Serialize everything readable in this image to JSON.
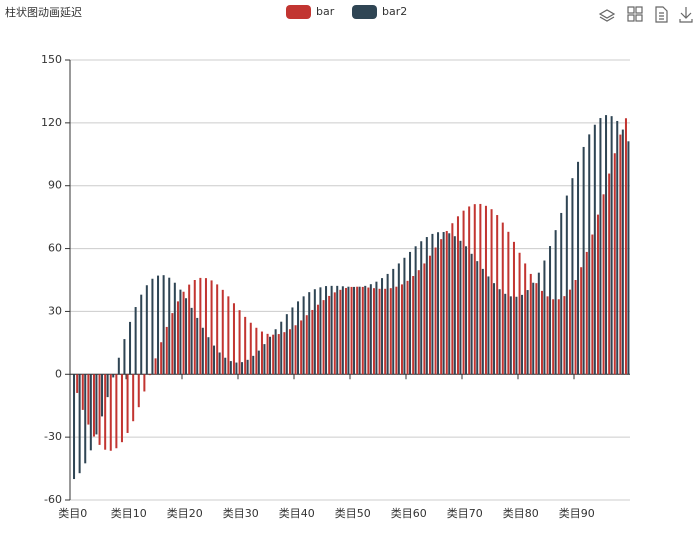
{
  "chart_data": {
    "type": "bar",
    "title": "柱状图动画延迟",
    "categories": [
      "类目0",
      null,
      null,
      null,
      null,
      null,
      null,
      null,
      null,
      null,
      "类目10",
      null,
      null,
      null,
      null,
      null,
      null,
      null,
      null,
      null,
      "类目20",
      null,
      null,
      null,
      null,
      null,
      null,
      null,
      null,
      null,
      "类目30",
      null,
      null,
      null,
      null,
      null,
      null,
      null,
      null,
      null,
      "类目40",
      null,
      null,
      null,
      null,
      null,
      null,
      null,
      null,
      null,
      "类目50",
      null,
      null,
      null,
      null,
      null,
      null,
      null,
      null,
      null,
      "类目60",
      null,
      null,
      null,
      null,
      null,
      null,
      null,
      null,
      null,
      "类目70",
      null,
      null,
      null,
      null,
      null,
      null,
      null,
      null,
      null,
      "类目80",
      null,
      null,
      null,
      null,
      null,
      null,
      null,
      null,
      null,
      "类目90",
      null,
      null,
      null,
      null,
      null,
      null,
      null,
      null,
      null
    ],
    "series": [
      {
        "name": "bar",
        "color": "#c23531",
        "values": [
          0,
          -8.9,
          -17.0,
          -24.0,
          -29.7,
          -33.7,
          -36.0,
          -36.5,
          -35.3,
          -32.4,
          -28.0,
          -22.4,
          -15.7,
          -8.2,
          -0.4,
          7.6,
          15.3,
          22.6,
          29.2,
          34.8,
          39.4,
          42.8,
          45.0,
          46.0,
          45.9,
          44.8,
          42.9,
          40.3,
          37.2,
          33.9,
          30.6,
          27.4,
          24.6,
          22.2,
          20.4,
          19.3,
          18.9,
          19.2,
          20.1,
          21.5,
          23.4,
          25.7,
          28.2,
          30.7,
          33.2,
          35.4,
          37.4,
          39.1,
          40.3,
          41.2,
          41.7,
          41.8,
          41.7,
          41.4,
          41.1,
          40.8,
          40.8,
          41.1,
          41.8,
          42.9,
          44.6,
          46.9,
          49.7,
          52.9,
          56.6,
          60.5,
          64.5,
          68.4,
          72.1,
          75.4,
          78.1,
          80.1,
          81.2,
          81.3,
          80.4,
          78.8,
          76.0,
          72.4,
          68.0,
          63.2,
          58.0,
          52.9,
          47.9,
          43.5,
          39.8,
          37.2,
          35.8,
          35.8,
          37.3,
          40.4,
          45.0,
          51.1,
          58.4,
          66.7,
          76.2,
          85.9,
          95.8,
          105.5,
          114.4,
          122.2
        ]
      },
      {
        "name": "bar2",
        "color": "#2f4554",
        "values": [
          -50,
          -47.2,
          -42.5,
          -36.3,
          -28.7,
          -20.1,
          -10.9,
          -1.5,
          7.9,
          16.8,
          25.0,
          32.1,
          38.0,
          42.5,
          45.6,
          47.1,
          47.3,
          46.1,
          43.7,
          40.4,
          36.3,
          31.7,
          26.9,
          22.2,
          17.7,
          13.7,
          10.4,
          7.9,
          6.3,
          5.6,
          5.8,
          6.9,
          8.8,
          11.3,
          14.4,
          17.9,
          21.5,
          25.1,
          28.7,
          31.9,
          34.8,
          37.2,
          39.2,
          40.6,
          41.5,
          42.1,
          42.2,
          42.2,
          42.0,
          41.8,
          41.7,
          41.8,
          42.2,
          43.0,
          44.2,
          45.9,
          47.9,
          50.3,
          52.9,
          55.6,
          58.4,
          61.1,
          63.5,
          65.5,
          67.0,
          67.8,
          67.9,
          67.3,
          65.9,
          63.7,
          61.1,
          57.5,
          54.0,
          50.3,
          46.7,
          43.5,
          40.6,
          38.4,
          37.2,
          37.0,
          37.9,
          40.2,
          43.7,
          48.5,
          54.3,
          61.2,
          68.8,
          77.0,
          85.3,
          93.6,
          101.4,
          108.5,
          114.5,
          119.1,
          122.3,
          123.7,
          123.2,
          120.9,
          116.8,
          111.2
        ]
      }
    ],
    "ylim": [
      -60,
      150
    ],
    "yticks": [
      -60,
      -30,
      0,
      30,
      60,
      90,
      120,
      150
    ],
    "grid": true
  }
}
